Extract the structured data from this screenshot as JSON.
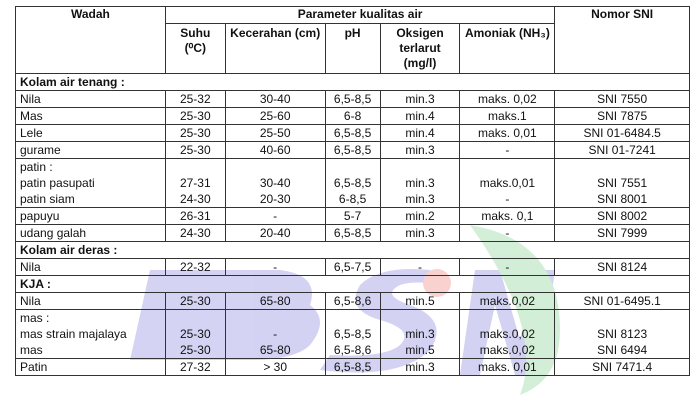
{
  "table": {
    "header": {
      "wadah": "Wadah",
      "parameter": "Parameter kualitas air",
      "nomor": "Nomor SNI",
      "columns": [
        "Suhu (⁰C)",
        "Kecerahan (cm)",
        "pH",
        "Oksigen terlarut (mg/l)",
        "Amoniak (NH₃)"
      ]
    },
    "sections": [
      {
        "title": "Kolam air tenang :",
        "rows": [
          {
            "cells": [
              "Nila",
              "25-32",
              "30-40",
              "6,5-8,5",
              "min.3",
              "maks. 0,02",
              "SNI 7550"
            ]
          },
          {
            "cells": [
              "Mas",
              "25-30",
              "25-60",
              "6-8",
              "min.4",
              "maks.1",
              "SNI 7875"
            ]
          },
          {
            "cells": [
              "Lele",
              "25-30",
              "25-50",
              "6,5-8,5",
              "min.4",
              "maks. 0,01",
              "SNI 01-6484.5"
            ]
          },
          {
            "cells": [
              "gurame",
              "25-30",
              "40-60",
              "6,5-8,5",
              "min.3",
              "-",
              "SNI 01-7241"
            ]
          },
          {
            "label": "patin :",
            "subrows": [
              [
                "patin pasupati",
                "27-31",
                "30-40",
                "6,5-8,5",
                "min.3",
                "maks.0,01",
                "SNI 7551"
              ],
              [
                "patin siam",
                "24-30",
                "20-30",
                "6-8,5",
                "min.3",
                "-",
                "SNI 8001"
              ]
            ]
          },
          {
            "cells": [
              "papuyu",
              "26-31",
              "-",
              "5-7",
              "min.2",
              "maks. 0,1",
              "SNI 8002"
            ]
          },
          {
            "cells": [
              "udang galah",
              "24-30",
              "20-40",
              "6,5-8,5",
              "min.3",
              "-",
              "SNI 7999"
            ]
          }
        ]
      },
      {
        "title": "Kolam air deras :",
        "rows": [
          {
            "cells": [
              "Nila",
              "22-32",
              "-",
              "6,5-7,5",
              "-",
              "-",
              "SNI 8124"
            ]
          }
        ]
      },
      {
        "title": "KJA :",
        "rows": [
          {
            "cells": [
              "Nila",
              "25-30",
              "65-80",
              "6,5-8,6",
              "min.5",
              "maks.0,02",
              "SNI 01-6495.1"
            ]
          },
          {
            "label": "mas :",
            "subrows": [
              [
                "mas strain majalaya",
                "25-30",
                "-",
                "6,5-8,5",
                "min.3",
                "maks.0,02",
                "SNI 8123"
              ],
              [
                "mas",
                "25-30",
                "65-80",
                "6,5-8,6",
                "min.5",
                "maks.0,02",
                "SNI 6494"
              ]
            ]
          },
          {
            "cells": [
              "Patin",
              "27-32",
              "> 30",
              "6,5-8,5",
              "min.3",
              "maks. 0,01",
              "SNI 7471.4"
            ]
          }
        ]
      }
    ]
  }
}
